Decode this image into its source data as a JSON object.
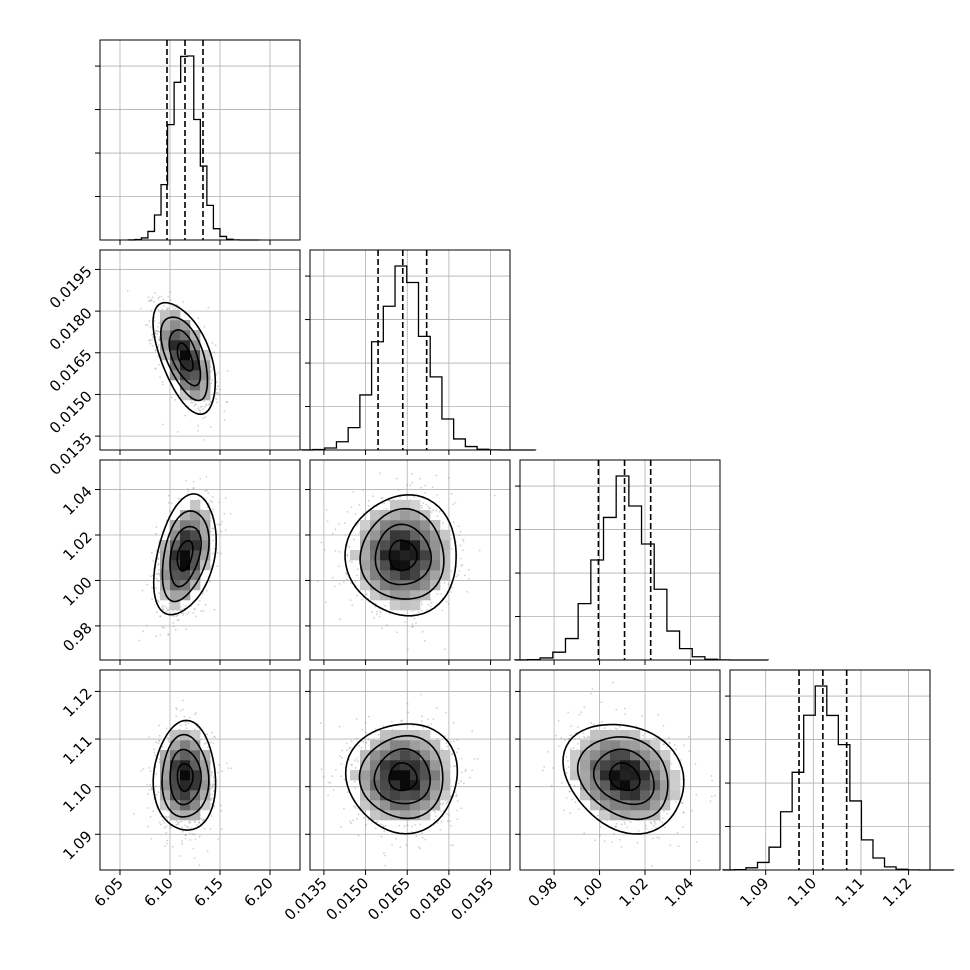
{
  "chart_data": {
    "type": "corner",
    "parameters": [
      {
        "ticks": [
          6.05,
          6.1,
          6.15,
          6.2
        ],
        "tick_labels": [
          "6.05",
          "6.10",
          "6.15",
          "6.20"
        ],
        "range": [
          6.03,
          6.23
        ],
        "quantiles": [
          6.097,
          6.115,
          6.133
        ],
        "center": 6.115,
        "sd": 0.0135
      },
      {
        "ticks": [
          0.0135,
          0.015,
          0.0165,
          0.018,
          0.0195
        ],
        "tick_labels": [
          "0.0135",
          "0.0150",
          "0.0165",
          "0.0180",
          "0.0195"
        ],
        "range": [
          0.013,
          0.0202
        ],
        "quantiles": [
          0.01545,
          0.01634,
          0.0172
        ],
        "center": 0.01634,
        "sd": 0.00087
      },
      {
        "ticks": [
          0.98,
          1.0,
          1.02,
          1.04
        ],
        "tick_labels": [
          "0.98",
          "1.00",
          "1.02",
          "1.04"
        ],
        "range": [
          0.965,
          1.053
        ],
        "quantiles": [
          0.9995,
          1.011,
          1.0225
        ],
        "center": 1.011,
        "sd": 0.0115
      },
      {
        "ticks": [
          1.09,
          1.1,
          1.11,
          1.12
        ],
        "tick_labels": [
          "1.09",
          "1.10",
          "1.11",
          "1.12"
        ],
        "range": [
          1.0825,
          1.1245
        ],
        "quantiles": [
          1.097,
          1.102,
          1.107
        ],
        "center": 1.102,
        "sd": 0.005
      }
    ],
    "correlations": [
      [
        0,
        1,
        -0.55
      ],
      [
        0,
        2,
        0.35
      ],
      [
        0,
        3,
        0.0
      ],
      [
        1,
        2,
        0.0
      ],
      [
        1,
        3,
        0.0
      ],
      [
        2,
        3,
        -0.2
      ]
    ],
    "histogram_bins": 20,
    "contour_levels_sigma": [
      0.5,
      1.0,
      1.5,
      2.0
    ],
    "grid": true,
    "colors": {
      "line": "#000000",
      "grid": "#b0b0b0",
      "points": "#7a7a7a"
    }
  }
}
